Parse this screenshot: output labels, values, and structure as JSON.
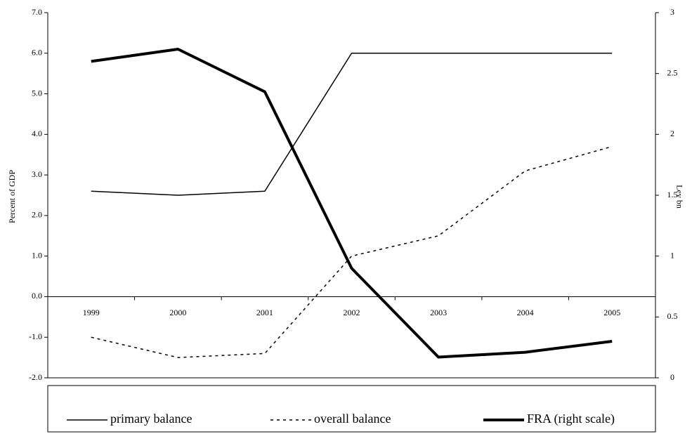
{
  "chart_data": {
    "type": "line",
    "ylabel": "Percent of GDP",
    "y2label": "Lev bn",
    "categories": [
      "1999",
      "2000",
      "2001",
      "2002",
      "2003",
      "2004",
      "2005"
    ],
    "series": [
      {
        "name": "primary balance",
        "color": "#000000",
        "line_style": "solid",
        "values": [
          2.6,
          2.5,
          2.6,
          6.0,
          6.0,
          6.0,
          6.0
        ]
      },
      {
        "name": "overall balance",
        "color": "#000000",
        "line_style": "dashed",
        "values": [
          -1.0,
          -1.5,
          -1.4,
          1.0,
          1.5,
          3.1,
          3.7
        ]
      },
      {
        "name": "FRA (right scale)",
        "color": "#000000",
        "line_style": "bold",
        "axis": "y2",
        "values": [
          2.6,
          2.7,
          2.35,
          0.9,
          0.17,
          0.21,
          0.3
        ]
      }
    ],
    "ylim": [
      -2,
      7
    ],
    "yticks": [
      {
        "value": -2,
        "label": "-2.0"
      },
      {
        "value": -1,
        "label": "-1.0"
      },
      {
        "value": 0,
        "label": "0.0"
      },
      {
        "value": 1,
        "label": "1.0"
      },
      {
        "value": 2,
        "label": "2.0"
      },
      {
        "value": 3,
        "label": "3.0"
      },
      {
        "value": 4,
        "label": "4.0"
      },
      {
        "value": 5,
        "label": "5.0"
      },
      {
        "value": 6,
        "label": "6.0"
      },
      {
        "value": 7,
        "label": "7.0"
      }
    ],
    "y2lim": [
      0,
      3
    ],
    "y2ticks": [
      0,
      0.5,
      1,
      1.5,
      2,
      2.5,
      3
    ],
    "grid": false,
    "legend": "bottom"
  }
}
